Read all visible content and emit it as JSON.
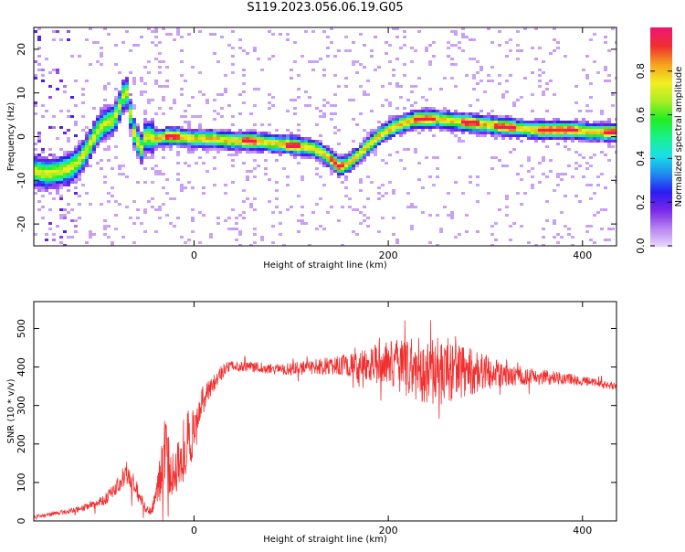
{
  "title": "S119.2023.056.06.19.G05",
  "chart_data": [
    {
      "type": "heatmap",
      "xlabel": "Height of straight line (km)",
      "ylabel": "Frequency (Hz)",
      "xlim": [
        -165,
        435
      ],
      "ylim": [
        -25,
        25
      ],
      "xticks": [
        0,
        200,
        400
      ],
      "yticks": [
        -20,
        -10,
        0,
        10,
        20
      ],
      "colorbar": {
        "label": "Normalized spectral amplitude",
        "range": [
          0.0,
          1.0
        ],
        "ticks": [
          0.0,
          0.2,
          0.4,
          0.6,
          0.8
        ],
        "tick_labels": [
          "0.0",
          "0.2",
          "0.4",
          "0.6",
          "0.8"
        ],
        "colormap": [
          "#e9d8fb",
          "#b784f2",
          "#7a27e8",
          "#2a1cf2",
          "#1f8cf0",
          "#18e0e8",
          "#19f08c",
          "#22ee22",
          "#aaee22",
          "#f2ee22",
          "#f5a41e",
          "#ef3030",
          "#ee1670"
        ]
      },
      "ridge": {
        "x": [
          -165,
          -150,
          -140,
          -130,
          -120,
          -110,
          -100,
          -92,
          -85,
          -80,
          -75,
          -70,
          -66,
          -62,
          -58,
          -55,
          -52,
          -50,
          -45,
          -40,
          -30,
          -20,
          0,
          20,
          40,
          60,
          80,
          100,
          120,
          130,
          140,
          150,
          160,
          170,
          180,
          190,
          200,
          215,
          230,
          250,
          270,
          290,
          310,
          330,
          350,
          370,
          390,
          410,
          435
        ],
        "y": [
          -8,
          -8.5,
          -8,
          -7.5,
          -6,
          -3,
          1,
          3,
          3.5,
          5,
          8,
          11,
          6,
          1,
          -1,
          -3,
          -2,
          0,
          0,
          -0.5,
          0,
          0,
          -0.5,
          -0.5,
          -1,
          -1,
          -1.5,
          -2,
          -2.5,
          -3.5,
          -5,
          -7,
          -6,
          -4,
          -2,
          0,
          1.5,
          3,
          4,
          4,
          3.5,
          3,
          2.5,
          2,
          1.5,
          1.5,
          1.5,
          1,
          1
        ]
      },
      "high_amplitude_x": [
        [
          -30,
          -15
        ],
        [
          50,
          65
        ],
        [
          95,
          110
        ],
        [
          140,
          155
        ],
        [
          225,
          250
        ],
        [
          275,
          295
        ],
        [
          310,
          330
        ],
        [
          355,
          395
        ],
        [
          420,
          435
        ]
      ]
    },
    {
      "type": "line",
      "xlabel": "Height of straight line (km)",
      "ylabel": "SNR (10 * v/v)",
      "xlim": [
        -165,
        435
      ],
      "ylim": [
        0,
        570
      ],
      "xticks": [
        0,
        200,
        400
      ],
      "yticks": [
        0,
        100,
        200,
        300,
        400,
        500
      ],
      "color": "#f03030",
      "envelope": {
        "x": [
          -165,
          -140,
          -120,
          -100,
          -90,
          -80,
          -70,
          -60,
          -50,
          -45,
          -40,
          -35,
          -30,
          -25,
          -20,
          -15,
          -10,
          -5,
          0,
          5,
          10,
          15,
          20,
          30,
          40,
          60,
          80,
          100,
          150,
          200,
          230,
          260,
          290,
          320,
          350,
          380,
          410,
          435
        ],
        "y": [
          10,
          20,
          28,
          45,
          60,
          85,
          130,
          90,
          35,
          25,
          50,
          110,
          180,
          140,
          110,
          150,
          190,
          220,
          230,
          270,
          320,
          340,
          360,
          390,
          405,
          400,
          395,
          395,
          405,
          410,
          395,
          390,
          385,
          380,
          375,
          370,
          360,
          350
        ],
        "noise": [
          4,
          6,
          8,
          12,
          15,
          20,
          35,
          30,
          15,
          10,
          25,
          60,
          90,
          80,
          60,
          80,
          90,
          80,
          60,
          50,
          40,
          30,
          25,
          18,
          15,
          14,
          14,
          16,
          25,
          60,
          85,
          90,
          60,
          30,
          22,
          16,
          12,
          10
        ]
      }
    }
  ]
}
